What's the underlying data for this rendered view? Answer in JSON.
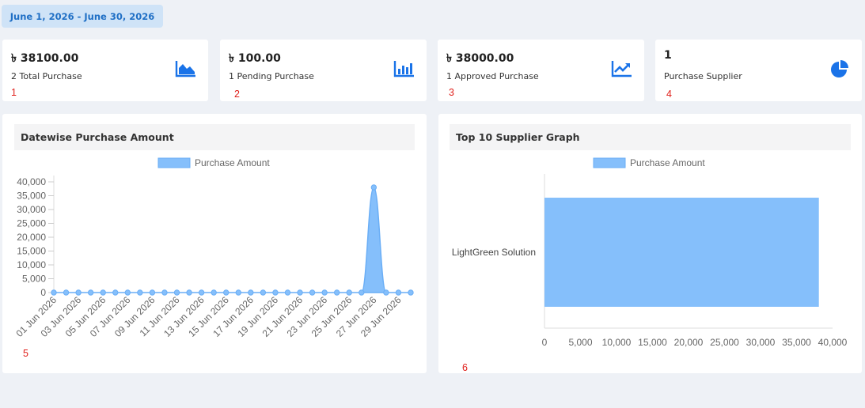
{
  "date_range": "June 1, 2026 - June 30, 2026",
  "colors": {
    "accent": "#1a73e8",
    "bar_fill": "#85bffb",
    "bar_stroke": "#6aaef6",
    "red_marker": "#e0201b"
  },
  "cards": [
    {
      "value": "৳ 38100.00",
      "label": "2 Total Purchase",
      "icon": "area-chart-icon",
      "marker": "1"
    },
    {
      "value": "৳ 100.00",
      "label": "1 Pending Purchase",
      "icon": "bar-chart-icon",
      "marker": "2"
    },
    {
      "value": "৳ 38000.00",
      "label": "1 Approved Purchase",
      "icon": "trending-up-icon",
      "marker": "3"
    },
    {
      "value": "1",
      "label": "Purchase Supplier",
      "icon": "pie-chart-icon",
      "marker": "4"
    }
  ],
  "panels": {
    "left": {
      "title": "Datewise Purchase Amount",
      "marker": "5"
    },
    "right": {
      "title": "Top 10 Supplier Graph",
      "marker": "6"
    }
  },
  "chart_data": [
    {
      "type": "area",
      "legend": [
        "Purchase Amount"
      ],
      "x_ticks": [
        "01 Jun 2026",
        "03 Jun 2026",
        "05 Jun 2026",
        "07 Jun 2026",
        "09 Jun 2026",
        "11 Jun 2026",
        "13 Jun 2026",
        "15 Jun 2026",
        "17 Jun 2026",
        "19 Jun 2026",
        "21 Jun 2026",
        "23 Jun 2026",
        "25 Jun 2026",
        "27 Jun 2026",
        "29 Jun 2026"
      ],
      "y_ticks": [
        "0",
        "5,000",
        "10,000",
        "15,000",
        "20,000",
        "25,000",
        "30,000",
        "35,000",
        "40,000"
      ],
      "ylim": [
        0,
        40000
      ],
      "series": [
        {
          "name": "Purchase Amount",
          "x": [
            "01 Jun 2026",
            "02 Jun 2026",
            "03 Jun 2026",
            "04 Jun 2026",
            "05 Jun 2026",
            "06 Jun 2026",
            "07 Jun 2026",
            "08 Jun 2026",
            "09 Jun 2026",
            "10 Jun 2026",
            "11 Jun 2026",
            "12 Jun 2026",
            "13 Jun 2026",
            "14 Jun 2026",
            "15 Jun 2026",
            "16 Jun 2026",
            "17 Jun 2026",
            "18 Jun 2026",
            "19 Jun 2026",
            "20 Jun 2026",
            "21 Jun 2026",
            "22 Jun 2026",
            "23 Jun 2026",
            "24 Jun 2026",
            "25 Jun 2026",
            "26 Jun 2026",
            "27 Jun 2026",
            "28 Jun 2026",
            "29 Jun 2026",
            "30 Jun 2026"
          ],
          "values": [
            0,
            0,
            0,
            0,
            0,
            0,
            0,
            0,
            0,
            0,
            0,
            0,
            0,
            0,
            0,
            0,
            0,
            0,
            0,
            0,
            0,
            0,
            0,
            0,
            0,
            0,
            38000,
            0,
            0,
            0
          ]
        }
      ]
    },
    {
      "type": "bar",
      "orientation": "horizontal",
      "legend": [
        "Purchase Amount"
      ],
      "categories": [
        "LightGreen Solution"
      ],
      "x_ticks": [
        "0",
        "5,000",
        "10,000",
        "15,000",
        "20,000",
        "25,000",
        "30,000",
        "35,000",
        "40,000"
      ],
      "xlim": [
        0,
        40000
      ],
      "series": [
        {
          "name": "Purchase Amount",
          "values": [
            38100
          ]
        }
      ]
    }
  ]
}
